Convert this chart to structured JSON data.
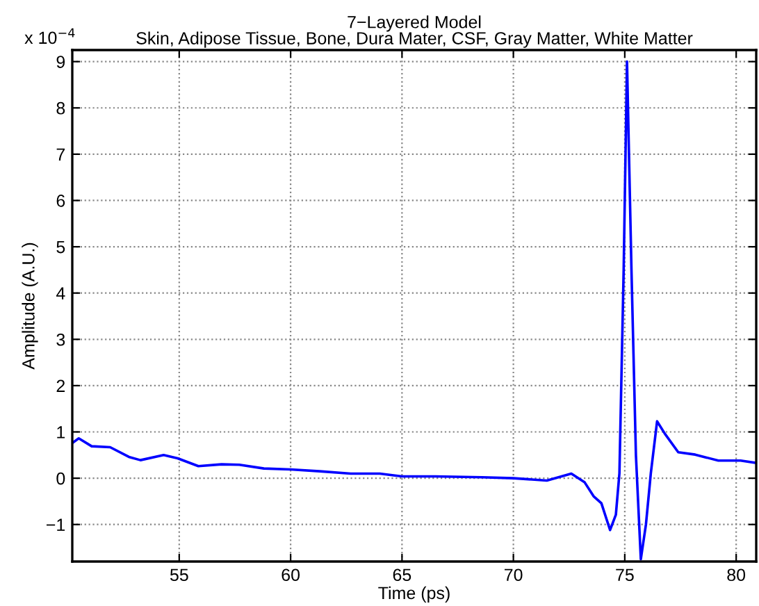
{
  "chart_data": {
    "type": "line",
    "title": "7−Layered Model\nSkin, Adipose Tissue, Bone, Dura Mater, CSF, Gray Matter, White Matter",
    "xlabel": "Time (ps)",
    "ylabel": "Amplitude (A.U.)",
    "annotations": [
      "x 10$^{−4}$"
    ],
    "series": [
      {
        "color": "#0000ff",
        "x": [
          50.2,
          50.49,
          51.07,
          51.9,
          52.74,
          53.26,
          54.3,
          54.93,
          55.86,
          56.9,
          57.7,
          58.8,
          60.0,
          61.3,
          62.7,
          64.0,
          65.0,
          66.5,
          68.6,
          70.0,
          71.5,
          72.6,
          73.2,
          73.6,
          73.95,
          74.34,
          74.6,
          74.76,
          74.95,
          75.1,
          75.3,
          75.5,
          75.72,
          75.95,
          76.17,
          76.45,
          76.8,
          77.4,
          78.16,
          79.2,
          80.2,
          80.9
        ],
        "values": [
          0.76,
          0.86,
          0.69,
          0.67,
          0.46,
          0.39,
          0.5,
          0.43,
          0.26,
          0.3,
          0.29,
          0.21,
          0.19,
          0.15,
          0.1,
          0.1,
          0.04,
          0.04,
          0.02,
          0.0,
          -0.05,
          0.1,
          -0.09,
          -0.39,
          -0.54,
          -1.12,
          -0.79,
          0.11,
          4.5,
          9.0,
          4.5,
          0.5,
          -1.75,
          -1.0,
          0.11,
          1.23,
          0.96,
          0.56,
          0.51,
          0.38,
          0.38,
          0.33
        ]
      }
    ],
    "xlim": [
      50.2,
      80.9
    ],
    "ylim": [
      -1.8,
      9.25
    ],
    "xticks": [
      55,
      60,
      65,
      70,
      75,
      80
    ],
    "yticks": [
      {
        "value": -1,
        "label": "−1"
      },
      0,
      1,
      2,
      3,
      4,
      5,
      6,
      7,
      8,
      9
    ],
    "grid": true,
    "legend": false,
    "marker": "none",
    "line_style": "solid"
  }
}
